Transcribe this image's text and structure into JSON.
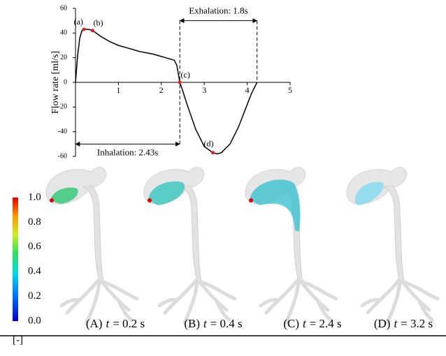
{
  "chart_data": {
    "type": "line",
    "x": [
      0,
      0.05,
      0.1,
      0.15,
      0.2,
      0.3,
      0.4,
      0.6,
      0.8,
      1,
      1.2,
      1.5,
      1.8,
      2,
      2.1,
      2.2,
      2.3,
      2.36,
      2.4,
      2.43,
      2.5,
      2.6,
      2.8,
      3,
      3.2,
      3.3,
      3.4,
      3.6,
      3.8,
      4,
      4.1,
      4.23
    ],
    "values": [
      0,
      22,
      36,
      42,
      43,
      43,
      42,
      37,
      33,
      30,
      28,
      25,
      23,
      21,
      20,
      19,
      18,
      14,
      6,
      0,
      -7,
      -18,
      -38,
      -52,
      -57,
      -58,
      -57,
      -50,
      -36,
      -18,
      -9,
      0
    ],
    "color": "#000000",
    "xlim": [
      0,
      5
    ],
    "ylim": [
      -60,
      60
    ],
    "xticks": [
      1,
      2,
      3,
      4,
      5
    ],
    "yticks": [
      -60,
      -40,
      -20,
      0,
      20,
      40,
      60
    ],
    "y_label": "Flow rate [ml/s]",
    "point_color": "#e02020",
    "points": [
      {
        "label": "(a)",
        "x": 0.2,
        "y": 43
      },
      {
        "label": "(b)",
        "x": 0.4,
        "y": 42
      },
      {
        "label": "(c)",
        "x": 2.43,
        "y": 0
      },
      {
        "label": "(d)",
        "x": 3.2,
        "y": -57
      }
    ],
    "spans": [
      {
        "label": "Exhalation: 1.8s",
        "x": [
          2.43,
          4.23
        ],
        "y": 50
      },
      {
        "label": "Inhalation: 2.43s",
        "x": [
          0,
          2.43
        ],
        "y": -50
      }
    ]
  },
  "colorbar": {
    "ticks": [
      {
        "value": 0,
        "label": "0.0"
      },
      {
        "value": 0.2,
        "label": "0.2"
      },
      {
        "value": 0.4,
        "label": "0.4"
      },
      {
        "value": 0.6,
        "label": "0.6"
      },
      {
        "value": 0.8,
        "label": "0.8"
      },
      {
        "value": 1,
        "label": "1.0"
      }
    ],
    "lim": [
      0,
      1
    ],
    "unit": "[-]"
  },
  "panels": [
    {
      "tag": "(A)",
      "var": "t",
      "rest": "= 0.2 s"
    },
    {
      "tag": "(B)",
      "var": "t",
      "rest": "= 0.4 s"
    },
    {
      "tag": "(C)",
      "var": "t",
      "rest": "= 2.4 s"
    },
    {
      "tag": "(D)",
      "var": "t",
      "rest": "= 3.2 s"
    }
  ]
}
